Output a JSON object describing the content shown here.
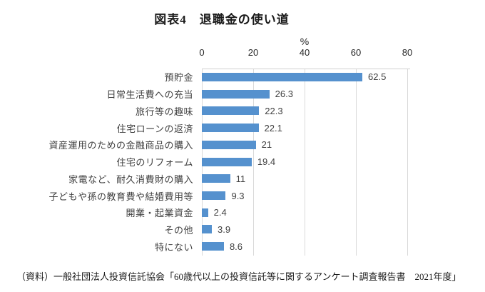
{
  "title": "図表4　退職金の使い道",
  "axis": {
    "unit_label": "%",
    "ticks": [
      "0",
      "20",
      "40",
      "60",
      "80"
    ],
    "min": 0,
    "max": 80
  },
  "chart_data": {
    "type": "bar",
    "orientation": "horizontal",
    "title": "図表4　退職金の使い道",
    "xlabel": "%",
    "ylabel": "",
    "xlim": [
      0,
      80
    ],
    "grid": true,
    "legend": "none",
    "bar_color": "#5591ce",
    "gridline_color": "#d9d9d9",
    "categories": [
      "預貯金",
      "日常生活費への充当",
      "旅行等の趣味",
      "住宅ローンの返済",
      "資産運用のための金融商品の購入",
      "住宅のリフォーム",
      "家電など、耐久消費財の購入",
      "子どもや孫の教育費や結婚費用等",
      "開業・起業資金",
      "その他",
      "特にない"
    ],
    "values": [
      62.5,
      26.3,
      22.3,
      22.1,
      21,
      19.4,
      11,
      9.3,
      2.4,
      3.9,
      8.6
    ],
    "value_labels": [
      "62.5",
      "26.3",
      "22.3",
      "22.1",
      "21",
      "19.4",
      "11",
      "9.3",
      "2.4",
      "3.9",
      "8.6"
    ]
  },
  "source": "（資料）一般社団法人投資信託協会「60歳代以上の投資信託等に関するアンケート調査報告書　2021年度」"
}
